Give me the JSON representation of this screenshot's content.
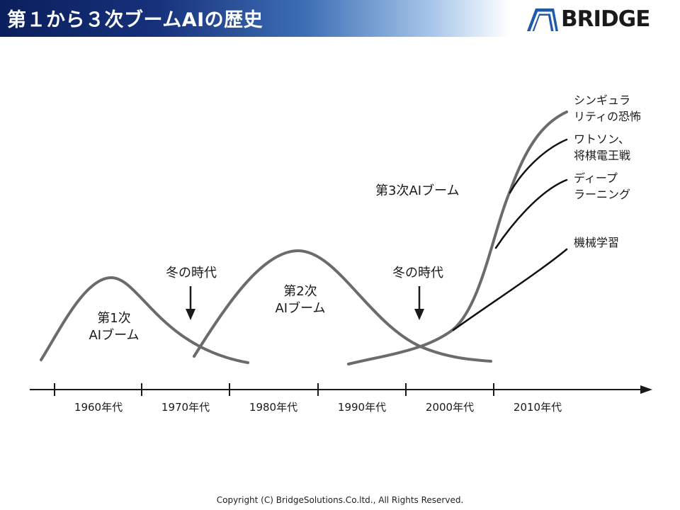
{
  "header": {
    "title": "第１から３次ブームAIの歴史",
    "logo_text": "BRIDGE"
  },
  "diagram": {
    "booms": {
      "first": [
        "第1次",
        "AIブーム"
      ],
      "second": [
        "第2次",
        "AIブーム"
      ],
      "third": "第3次AIブーム"
    },
    "winters": [
      "冬の時代",
      "冬の時代"
    ],
    "branches": {
      "singularity": [
        "シンギュラ",
        "リティの恐怖"
      ],
      "watson": [
        "ワトソン、",
        "将棋電王戦"
      ],
      "deep_learning": [
        "ディープ",
        "ラーニング"
      ],
      "machine_learning": "機械学習"
    },
    "decades": [
      "1960年代",
      "1970年代",
      "1980年代",
      "1990年代",
      "2000年代",
      "2010年代"
    ]
  },
  "footer": {
    "copyright": "Copyright (C) BridgeSolutions.Co.ltd.,  All Rights Reserved."
  },
  "colors": {
    "curve": "#6b6b6b",
    "branch": "#111111",
    "text": "#1a1a1a",
    "title_bg": "#16307a",
    "logo_blue": "#1e5aa8"
  }
}
